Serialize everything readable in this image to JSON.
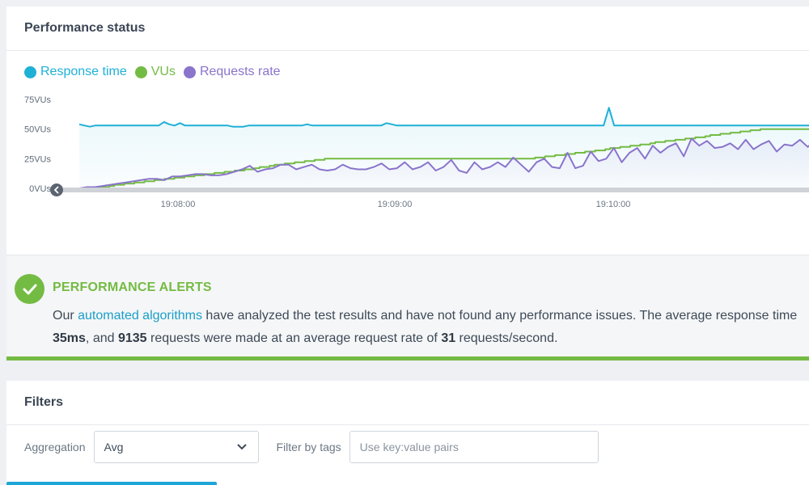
{
  "performance": {
    "title": "Performance status",
    "legend": [
      {
        "label": "Response time",
        "color": "#1fb0d6"
      },
      {
        "label": "VUs",
        "color": "#74bb44"
      },
      {
        "label": "Requests rate",
        "color": "#8a74cc"
      }
    ]
  },
  "chart_data": {
    "type": "line",
    "y_ticks": [
      "75VUs",
      "50VUs",
      "25VUs",
      "0VUs"
    ],
    "y_tick_values": [
      75,
      50,
      25,
      0
    ],
    "ylim": [
      0,
      75
    ],
    "x_ticks": [
      "19:08:00",
      "19:09:00",
      "19:10:00"
    ],
    "grid": false,
    "series": [
      {
        "name": "Response time",
        "color": "#1fb0d6",
        "values": [
          54,
          53,
          52,
          53,
          53,
          53,
          53,
          53,
          53,
          53,
          53,
          53,
          53,
          53,
          53,
          53,
          56,
          54,
          53,
          55,
          53,
          53,
          53,
          53,
          53,
          53,
          53,
          53,
          53,
          52,
          52,
          52,
          53,
          53,
          53,
          53,
          53,
          53,
          53,
          53,
          53,
          53,
          53,
          54,
          53,
          53,
          53,
          53,
          53,
          53,
          53,
          53,
          53,
          53,
          53,
          53,
          53,
          53,
          55,
          54,
          53,
          53,
          53,
          53,
          53,
          53,
          53,
          53,
          53,
          53,
          53,
          53,
          53,
          53,
          53,
          53,
          53,
          53,
          53,
          53,
          53,
          53,
          53,
          53,
          53,
          53,
          53,
          53,
          53,
          53,
          53,
          53,
          53,
          53,
          53,
          53,
          53,
          53,
          53,
          53,
          68,
          53,
          53,
          53,
          53,
          53,
          53,
          53,
          53,
          53,
          53,
          53,
          53,
          53,
          53,
          53,
          53,
          53,
          53,
          53,
          53,
          53,
          53,
          53,
          53,
          53,
          53,
          53,
          53,
          53,
          53,
          53,
          53,
          53,
          53,
          53,
          53,
          53,
          53,
          53
        ]
      },
      {
        "name": "VUs",
        "color": "#74bb44",
        "values": [
          0,
          0,
          0,
          1,
          1,
          1,
          2,
          3,
          3,
          4,
          4,
          5,
          5,
          6,
          6,
          7,
          7,
          8,
          8,
          9,
          9,
          10,
          10,
          11,
          11,
          12,
          12,
          13,
          13,
          14,
          14,
          15,
          15,
          16,
          16,
          17,
          18,
          18,
          19,
          20,
          20,
          21,
          21,
          22,
          22,
          23,
          23,
          24,
          24,
          25,
          25,
          25,
          25,
          25,
          25,
          25,
          25,
          25,
          25,
          25,
          25,
          25,
          25,
          25,
          25,
          25,
          25,
          25,
          25,
          25,
          25,
          25,
          25,
          25,
          25,
          25,
          25,
          25,
          25,
          25,
          25,
          25,
          25,
          25,
          25,
          25,
          25,
          25,
          25,
          25,
          25,
          26,
          26,
          27,
          27,
          28,
          28,
          29,
          29,
          30,
          30,
          31,
          31,
          32,
          32,
          33,
          34,
          34,
          35,
          35,
          36,
          36,
          37,
          37,
          38,
          39,
          39,
          40,
          40,
          41,
          41,
          42,
          42,
          43,
          43,
          44,
          45,
          45,
          46,
          46,
          47,
          47,
          48,
          48,
          49,
          49,
          50,
          50,
          50,
          50,
          50,
          50,
          50,
          50,
          50,
          50,
          50,
          50
        ]
      },
      {
        "name": "Requests rate",
        "color": "#8a74cc",
        "values": [
          0,
          1,
          1,
          2,
          3,
          4,
          5,
          6,
          7,
          8,
          8,
          7,
          10,
          10,
          11,
          12,
          12,
          11,
          11,
          12,
          14,
          16,
          19,
          14,
          16,
          17,
          20,
          20,
          16,
          18,
          20,
          16,
          15,
          16,
          20,
          17,
          16,
          16,
          18,
          21,
          16,
          17,
          22,
          16,
          18,
          22,
          15,
          18,
          24,
          15,
          13,
          22,
          16,
          18,
          22,
          18,
          26,
          20,
          14,
          22,
          25,
          18,
          17,
          30,
          17,
          19,
          31,
          23,
          25,
          34,
          22,
          30,
          34,
          25,
          36,
          30,
          35,
          38,
          27,
          42,
          36,
          40,
          34,
          35,
          38,
          33,
          41,
          33,
          37,
          40,
          31,
          37,
          36,
          41,
          35,
          40
        ]
      }
    ]
  },
  "alert": {
    "title": "PERFORMANCE ALERTS",
    "text_1": "Our ",
    "link": "automated algorithms",
    "text_2": " have analyzed the test results and have not found any performance issues. The average response time",
    "avg_response": "35ms",
    "text_3": ", and ",
    "requests": "9135",
    "text_4": " requests were made at an average request rate of ",
    "rate": "31",
    "text_5": " requests/second."
  },
  "filters": {
    "title": "Filters",
    "aggregation_label": "Aggregation",
    "aggregation_value": "Avg",
    "tags_label": "Filter by tags",
    "tags_placeholder": "Use key:value pairs"
  },
  "icons": {
    "check": "check-icon",
    "chevron": "chevron-down-icon",
    "scroll_left": "chevron-left-icon"
  }
}
